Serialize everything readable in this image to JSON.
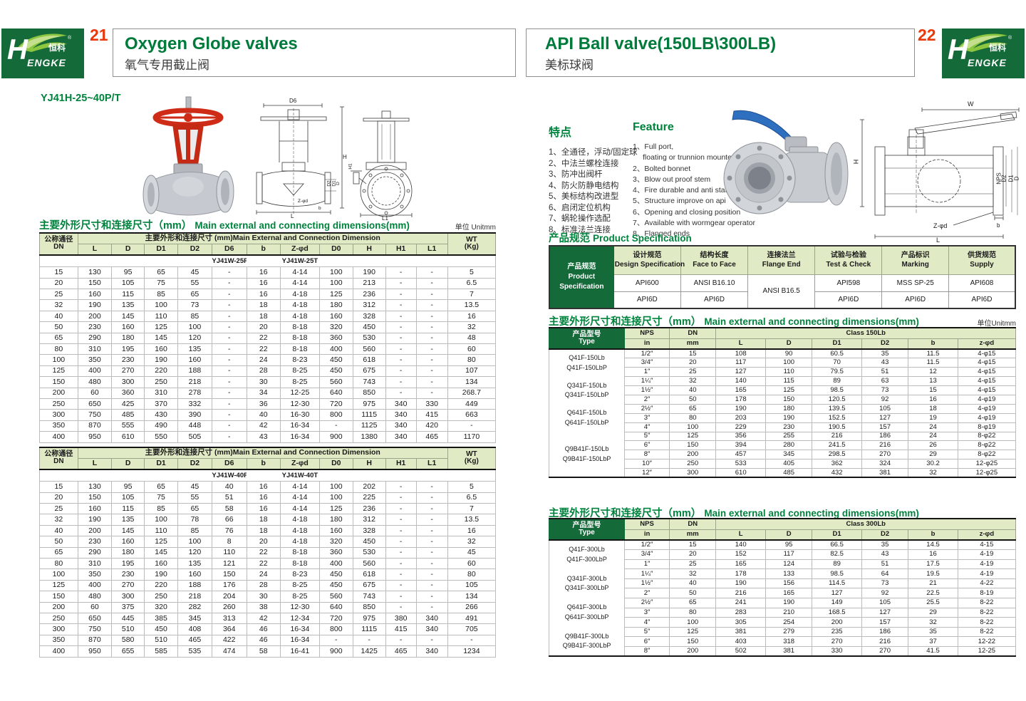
{
  "brand": {
    "h": "H",
    "rest": "ENGKE",
    "cn": "恒科",
    "reg": "®"
  },
  "left": {
    "page_no": "21",
    "title_en": "Oxygen Globe valves",
    "title_zh": "氧气专用截止阀",
    "model": "YJ41H-25~40P/T",
    "section_title_zh": "主要外形尺寸和连接尺寸（mm）",
    "section_title_en": "Main external and connecting dimensions(mm)",
    "unit": "单位 Unitmm",
    "table1": [
      [
        {
          "lines": [
            "公称通径",
            "DN"
          ],
          "rowspan": 2,
          "cls": "h h2 hc"
        },
        {
          "text": "主要外形和连接尺寸 (mm)Main External and Connection Dimension",
          "colspan": 11,
          "cls": "h"
        },
        {
          "lines": [
            "WT",
            "(Kg)"
          ],
          "rowspan": 2,
          "cls": "h h2 hc"
        }
      ],
      [
        {
          "text": "L",
          "cls": "h h2"
        },
        {
          "text": "D",
          "cls": "h h2"
        },
        {
          "text": "D1",
          "cls": "h h2"
        },
        {
          "text": "D2",
          "cls": "h h2"
        },
        {
          "text": "D6",
          "cls": "h h2"
        },
        {
          "text": "b",
          "cls": "h h2"
        },
        {
          "text": "Z-φd",
          "cls": "h h2"
        },
        {
          "text": "D0",
          "cls": "h h2"
        },
        {
          "text": "H",
          "cls": "h h2"
        },
        {
          "text": "H1",
          "cls": "h h2"
        },
        {
          "text": "L1",
          "cls": "h h2"
        }
      ],
      [
        {
          "text": "",
          "colspan": 5,
          "cls": "nb"
        },
        {
          "text": "YJ41W-25P",
          "cls": "nb"
        },
        {
          "text": "",
          "cls": "nb"
        },
        {
          "text": "YJ41W-25T",
          "cls": "nb"
        },
        {
          "text": "",
          "colspan": 5,
          "cls": "nb"
        }
      ],
      [
        "15",
        "130",
        "95",
        "65",
        "45",
        "-",
        "16",
        "4-14",
        "100",
        "190",
        "-",
        "-",
        "5"
      ],
      [
        "20",
        "150",
        "105",
        "75",
        "55",
        "-",
        "16",
        "4-14",
        "100",
        "213",
        "-",
        "-",
        "6.5"
      ],
      [
        "25",
        "160",
        "115",
        "85",
        "65",
        "-",
        "16",
        "4-18",
        "125",
        "236",
        "-",
        "-",
        "7"
      ],
      [
        "32",
        "190",
        "135",
        "100",
        "73",
        "-",
        "18",
        "4-18",
        "180",
        "312",
        "-",
        "-",
        "13.5"
      ],
      [
        "40",
        "200",
        "145",
        "110",
        "85",
        "-",
        "18",
        "4-18",
        "160",
        "328",
        "-",
        "-",
        "16"
      ],
      [
        "50",
        "230",
        "160",
        "125",
        "100",
        "-",
        "20",
        "8-18",
        "320",
        "450",
        "-",
        "-",
        "32"
      ],
      [
        "65",
        "290",
        "180",
        "145",
        "120",
        "-",
        "22",
        "8-18",
        "360",
        "530",
        "-",
        "-",
        "48"
      ],
      [
        "80",
        "310",
        "195",
        "160",
        "135",
        "-",
        "22",
        "8-18",
        "400",
        "560",
        "-",
        "-",
        "60"
      ],
      [
        "100",
        "350",
        "230",
        "190",
        "160",
        "-",
        "24",
        "8-23",
        "450",
        "618",
        "-",
        "-",
        "80"
      ],
      [
        "125",
        "400",
        "270",
        "220",
        "188",
        "-",
        "28",
        "8-25",
        "450",
        "675",
        "-",
        "-",
        "107"
      ],
      [
        "150",
        "480",
        "300",
        "250",
        "218",
        "-",
        "30",
        "8-25",
        "560",
        "743",
        "-",
        "-",
        "134"
      ],
      [
        "200",
        "60",
        "360",
        "310",
        "278",
        "-",
        "34",
        "12-25",
        "640",
        "850",
        "-",
        "-",
        "268.7"
      ],
      [
        "250",
        "650",
        "425",
        "370",
        "332",
        "-",
        "36",
        "12-30",
        "720",
        "975",
        "340",
        "330",
        "449"
      ],
      [
        "300",
        "750",
        "485",
        "430",
        "390",
        "-",
        "40",
        "16-30",
        "800",
        "1115",
        "340",
        "415",
        "663"
      ],
      [
        "350",
        "870",
        "555",
        "490",
        "448",
        "-",
        "42",
        "16-34",
        "-",
        "1125",
        "340",
        "420",
        "-"
      ],
      [
        "400",
        "950",
        "610",
        "550",
        "505",
        "-",
        "43",
        "16-34",
        "900",
        "1380",
        "340",
        "465",
        "1170"
      ]
    ],
    "table2": [
      [
        {
          "lines": [
            "公称通径",
            "DN"
          ],
          "rowspan": 2,
          "cls": "h h2 hc"
        },
        {
          "text": "主要外形和连接尺寸 (mm)Main External and Connection Dimension",
          "colspan": 11,
          "cls": "h"
        },
        {
          "lines": [
            "WT",
            "(Kg)"
          ],
          "rowspan": 2,
          "cls": "h h2 hc"
        }
      ],
      [
        {
          "text": "L",
          "cls": "h h2"
        },
        {
          "text": "D",
          "cls": "h h2"
        },
        {
          "text": "D1",
          "cls": "h h2"
        },
        {
          "text": "D2",
          "cls": "h h2"
        },
        {
          "text": "D6",
          "cls": "h h2"
        },
        {
          "text": "b",
          "cls": "h h2"
        },
        {
          "text": "Z-φd",
          "cls": "h h2"
        },
        {
          "text": "D0",
          "cls": "h h2"
        },
        {
          "text": "H",
          "cls": "h h2"
        },
        {
          "text": "H1",
          "cls": "h h2"
        },
        {
          "text": "L1",
          "cls": "h h2"
        }
      ],
      [
        {
          "text": "",
          "colspan": 5,
          "cls": "nb"
        },
        {
          "text": "YJ41W-40P",
          "cls": "nb"
        },
        {
          "text": "",
          "cls": "nb"
        },
        {
          "text": "YJ41W-40T",
          "cls": "nb"
        },
        {
          "text": "",
          "colspan": 5,
          "cls": "nb"
        }
      ],
      [
        "15",
        "130",
        "95",
        "65",
        "45",
        "40",
        "16",
        "4-14",
        "100",
        "202",
        "-",
        "-",
        "5"
      ],
      [
        "20",
        "150",
        "105",
        "75",
        "55",
        "51",
        "16",
        "4-14",
        "100",
        "225",
        "-",
        "-",
        "6.5"
      ],
      [
        "25",
        "160",
        "115",
        "85",
        "65",
        "58",
        "16",
        "4-14",
        "125",
        "236",
        "-",
        "-",
        "7"
      ],
      [
        "32",
        "190",
        "135",
        "100",
        "78",
        "66",
        "18",
        "4-18",
        "180",
        "312",
        "-",
        "-",
        "13.5"
      ],
      [
        "40",
        "200",
        "145",
        "110",
        "85",
        "76",
        "18",
        "4-18",
        "160",
        "328",
        "-",
        "-",
        "16"
      ],
      [
        "50",
        "230",
        "160",
        "125",
        "100",
        "8",
        "20",
        "4-18",
        "320",
        "450",
        "-",
        "-",
        "32"
      ],
      [
        "65",
        "290",
        "180",
        "145",
        "120",
        "110",
        "22",
        "8-18",
        "360",
        "530",
        "-",
        "-",
        "45"
      ],
      [
        "80",
        "310",
        "195",
        "160",
        "135",
        "121",
        "22",
        "8-18",
        "400",
        "560",
        "-",
        "-",
        "60"
      ],
      [
        "100",
        "350",
        "230",
        "190",
        "160",
        "150",
        "24",
        "8-23",
        "450",
        "618",
        "-",
        "-",
        "80"
      ],
      [
        "125",
        "400",
        "270",
        "220",
        "188",
        "176",
        "28",
        "8-25",
        "450",
        "675",
        "-",
        "-",
        "105"
      ],
      [
        "150",
        "480",
        "300",
        "250",
        "218",
        "204",
        "30",
        "8-25",
        "560",
        "743",
        "-",
        "-",
        "134"
      ],
      [
        "200",
        "60",
        "375",
        "320",
        "282",
        "260",
        "38",
        "12-30",
        "640",
        "850",
        "-",
        "-",
        "266"
      ],
      [
        "250",
        "650",
        "445",
        "385",
        "345",
        "313",
        "42",
        "12-34",
        "720",
        "975",
        "380",
        "340",
        "491"
      ],
      [
        "300",
        "750",
        "510",
        "450",
        "408",
        "364",
        "46",
        "16-34",
        "800",
        "1115",
        "415",
        "340",
        "705"
      ],
      [
        "350",
        "870",
        "580",
        "510",
        "465",
        "422",
        "46",
        "16-34",
        "-",
        "-",
        "-",
        "-",
        "-"
      ],
      [
        "400",
        "950",
        "655",
        "585",
        "535",
        "474",
        "58",
        "16-41",
        "900",
        "1425",
        "465",
        "340",
        "1234"
      ]
    ]
  },
  "right": {
    "page_no": "22",
    "title_en": "API Ball valve(150LB\\300LB)",
    "title_zh": "美标球阀",
    "features_zh_title": "特点",
    "features_zh": [
      "1、全通径，浮动/固定球",
      "2、中法兰螺栓连接",
      "3、防冲出阀杆",
      "4、防火防静电结构",
      "5、美标结构改进型",
      "6、启闭定位机构",
      "7、蜗轮操作选配",
      "8、标准法兰连接"
    ],
    "features_en_title": "Feature",
    "features_en": [
      [
        "1、Full port,",
        "floating or trunnion mounte type"
      ],
      "2、Bolted bonnet",
      "3、Blow out proof stem",
      "4、Fire durable and anti static safety",
      "5、Structure improve on api",
      "6、Opening and closing position",
      "7、Available with wormgear operator",
      "8、Flanged ends"
    ],
    "spec_title_zh": "产品规范",
    "spec_title_en": "Product Specification",
    "spec_table": [
      [
        {
          "lines": [
            "产品规范",
            "Product",
            "Specification"
          ],
          "rowspan": 3,
          "cls": "corner"
        },
        {
          "lines": [
            "设计规范",
            "Design Specification"
          ],
          "cls": "h"
        },
        {
          "lines": [
            "结构长度",
            "Face to Face"
          ],
          "cls": "h"
        },
        {
          "lines": [
            "连接法兰",
            "Flange End"
          ],
          "cls": "h"
        },
        {
          "lines": [
            "试验与检验",
            "Test & Check"
          ],
          "cls": "h"
        },
        {
          "lines": [
            "产品标识",
            "Marking"
          ],
          "cls": "h"
        },
        {
          "lines": [
            "供货规范",
            "Supply"
          ],
          "cls": "h"
        }
      ],
      [
        "API600",
        "ANSI B16.10",
        {
          "text": "ANSI B16.5",
          "rowspan": 2
        },
        "API598",
        "MSS SP-25",
        "API608"
      ],
      [
        "API6D",
        "API6D",
        "API6D",
        "API6D",
        "API6D"
      ]
    ],
    "dim_title_zh": "主要外形尺寸和连接尺寸（mm）",
    "dim_title_en": "Main external and connecting dimensions(mm)",
    "unit150": "单位Unitmm",
    "t150": [
      [
        {
          "lines": [
            "产品型号",
            "Type"
          ],
          "rowspan": 2,
          "cls": "corner h2"
        },
        {
          "text": "NPS",
          "cls": "h"
        },
        {
          "text": "DN",
          "cls": "h"
        },
        {
          "text": "Class 150Lb",
          "colspan": 6,
          "cls": "h"
        }
      ],
      [
        {
          "text": "in",
          "cls": "h h2"
        },
        {
          "text": "mm",
          "cls": "h h2"
        },
        {
          "text": "L",
          "cls": "h h2"
        },
        {
          "text": "D",
          "cls": "h h2"
        },
        {
          "text": "D1",
          "cls": "h h2"
        },
        {
          "text": "D2",
          "cls": "h h2"
        },
        {
          "text": "b",
          "cls": "h h2"
        },
        {
          "text": "z-φd",
          "cls": "h h2"
        }
      ],
      [
        {
          "lines": [
            "Q41F-150Lb",
            "Q41F-150LbP"
          ],
          "rowspan": 3,
          "cls": "tcell"
        },
        "1/2″",
        "15",
        "108",
        "90",
        "60.5",
        "35",
        "11.5",
        "4-φ15"
      ],
      [
        "3/4″",
        "20",
        "117",
        "100",
        "70",
        "43",
        "11.5",
        "4-φ15"
      ],
      [
        "1″",
        "25",
        "127",
        "110",
        "79.5",
        "51",
        "12",
        "4-φ15"
      ],
      [
        {
          "lines": [
            "Q341F-150Lb",
            "Q341F-150LbP"
          ],
          "rowspan": 3,
          "cls": "tcell"
        },
        "1¼″",
        "32",
        "140",
        "115",
        "89",
        "63",
        "13",
        "4-φ15"
      ],
      [
        "1½″",
        "40",
        "165",
        "125",
        "98.5",
        "73",
        "15",
        "4-φ15"
      ],
      [
        "2″",
        "50",
        "178",
        "150",
        "120.5",
        "92",
        "16",
        "4-φ19"
      ],
      [
        {
          "lines": [
            "Q641F-150Lb",
            "Q641F-150LbP"
          ],
          "rowspan": 3,
          "cls": "tcell"
        },
        "2½″",
        "65",
        "190",
        "180",
        "139.5",
        "105",
        "18",
        "4-φ19"
      ],
      [
        "3″",
        "80",
        "203",
        "190",
        "152.5",
        "127",
        "19",
        "4-φ19"
      ],
      [
        "4″",
        "100",
        "229",
        "230",
        "190.5",
        "157",
        "24",
        "8-φ19"
      ],
      [
        {
          "lines": [
            "Q9B41F-150Lb",
            "Q9B41F-150LbP"
          ],
          "rowspan": 5,
          "cls": "tcell"
        },
        "5″",
        "125",
        "356",
        "255",
        "216",
        "186",
        "24",
        "8-φ22"
      ],
      [
        "6″",
        "150",
        "394",
        "280",
        "241.5",
        "216",
        "26",
        "8-φ22"
      ],
      [
        "8″",
        "200",
        "457",
        "345",
        "298.5",
        "270",
        "29",
        "8-φ22"
      ],
      [
        "10″",
        "250",
        "533",
        "405",
        "362",
        "324",
        "30.2",
        "12-φ25"
      ],
      [
        "12″",
        "300",
        "610",
        "485",
        "432",
        "381",
        "32",
        "12-φ25"
      ]
    ],
    "t300": [
      [
        {
          "lines": [
            "产品型号",
            "Type"
          ],
          "rowspan": 2,
          "cls": "corner h2"
        },
        {
          "text": "NPS",
          "cls": "h"
        },
        {
          "text": "DN",
          "cls": "h"
        },
        {
          "text": "Class 300Lb",
          "colspan": 6,
          "cls": "h"
        }
      ],
      [
        {
          "text": "in",
          "cls": "h h2"
        },
        {
          "text": "mm",
          "cls": "h h2"
        },
        {
          "text": "L",
          "cls": "h h2"
        },
        {
          "text": "D",
          "cls": "h h2"
        },
        {
          "text": "D1",
          "cls": "h h2"
        },
        {
          "text": "D2",
          "cls": "h h2"
        },
        {
          "text": "b",
          "cls": "h h2"
        },
        {
          "text": "z-φd",
          "cls": "h h2"
        }
      ],
      [
        {
          "lines": [
            "Q41F-300Lb",
            "Q41F-300LbP"
          ],
          "rowspan": 3,
          "cls": "tcell"
        },
        "1/2″",
        "15",
        "140",
        "95",
        "66.5",
        "35",
        "14.5",
        "4-15"
      ],
      [
        "3/4″",
        "20",
        "152",
        "117",
        "82.5",
        "43",
        "16",
        "4-19"
      ],
      [
        "1″",
        "25",
        "165",
        "124",
        "89",
        "51",
        "17.5",
        "4-19"
      ],
      [
        {
          "lines": [
            "Q341F-300Lb",
            "Q341F-300LbP"
          ],
          "rowspan": 3,
          "cls": "tcell"
        },
        "1¼″",
        "32",
        "178",
        "133",
        "98.5",
        "64",
        "19.5",
        "4-19"
      ],
      [
        "1½″",
        "40",
        "190",
        "156",
        "114.5",
        "73",
        "21",
        "4-22"
      ],
      [
        "2″",
        "50",
        "216",
        "165",
        "127",
        "92",
        "22.5",
        "8-19"
      ],
      [
        {
          "lines": [
            "Q641F-300Lb",
            "Q641F-300LbP"
          ],
          "rowspan": 3,
          "cls": "tcell"
        },
        "2½″",
        "65",
        "241",
        "190",
        "149",
        "105",
        "25.5",
        "8-22"
      ],
      [
        "3″",
        "80",
        "283",
        "210",
        "168.5",
        "127",
        "29",
        "8-22"
      ],
      [
        "4″",
        "100",
        "305",
        "254",
        "200",
        "157",
        "32",
        "8-22"
      ],
      [
        {
          "lines": [
            "Q9B41F-300Lb",
            "Q9B41F-300LbP"
          ],
          "rowspan": 3,
          "cls": "tcell"
        },
        "5″",
        "125",
        "381",
        "279",
        "235",
        "186",
        "35",
        "8-22"
      ],
      [
        "6″",
        "150",
        "403",
        "318",
        "270",
        "216",
        "37",
        "12-22"
      ],
      [
        "8″",
        "200",
        "502",
        "381",
        "330",
        "270",
        "41.5",
        "12-25"
      ]
    ]
  },
  "diagrams": {
    "globe_front": {
      "d6": "D6",
      "h": "H",
      "d2": "D2",
      "d1": "D1",
      "d": "D",
      "z": "Z-φd",
      "l": "L",
      "b": "b"
    },
    "globe_side": {
      "h1": "H1",
      "l1": "L1"
    },
    "ball": {
      "w": "W",
      "h": "H",
      "nps": "NPS",
      "d2": "D2",
      "d1": "D1",
      "d": "D",
      "z": "Z-φd",
      "b": "b",
      "l": "L"
    }
  }
}
